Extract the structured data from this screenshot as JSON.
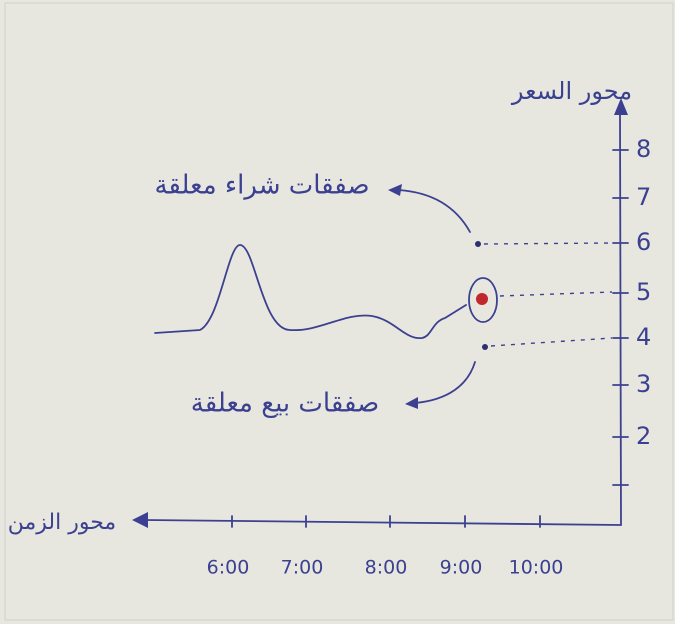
{
  "y_axis": {
    "label": "محور السعر",
    "ticks": [
      "8",
      "7",
      "6",
      "5",
      "4",
      "3",
      "2"
    ]
  },
  "x_axis": {
    "label": "محور الزمن",
    "ticks": [
      "6:00",
      "7:00",
      "8:00",
      "9:00",
      "10:00"
    ]
  },
  "annotations": {
    "buy": "صفقات شراء معلقة",
    "sell": "صفقات بيع معلقة"
  }
}
